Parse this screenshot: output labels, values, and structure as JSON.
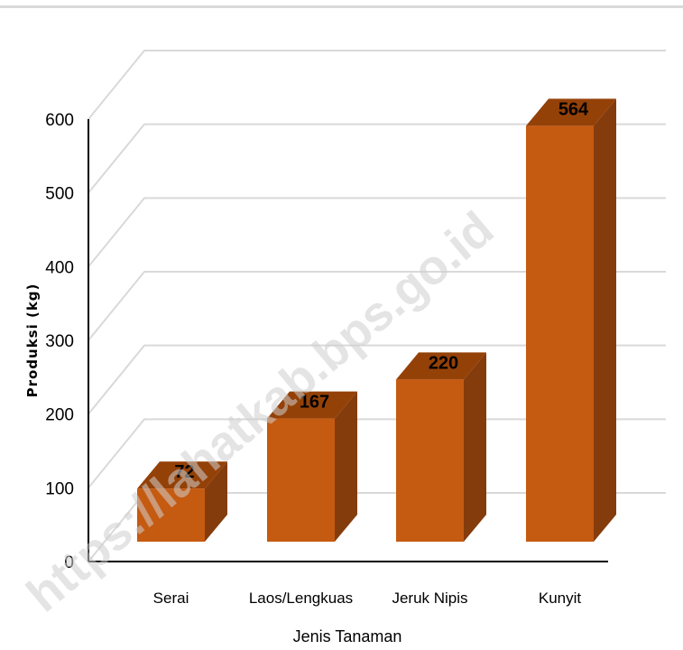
{
  "chart_data": {
    "type": "bar",
    "style": "3d-column",
    "categories": [
      "Serai",
      "Laos/Lengkuas",
      "Jeruk Nipis",
      "Kunyit"
    ],
    "values": [
      72,
      167,
      220,
      564
    ],
    "data_labels": [
      "72",
      "167",
      "220",
      "564"
    ],
    "xlabel": "Jenis Tanaman",
    "ylabel": "Produksi (kg)",
    "ylim": [
      0,
      600
    ],
    "yticks": [
      0,
      100,
      200,
      300,
      400,
      500,
      600
    ],
    "ytick_labels": [
      "0",
      "100",
      "200",
      "300",
      "400",
      "500",
      "600"
    ],
    "grid": true,
    "legend": "none",
    "colors": {
      "bar_front": "#c55a11",
      "bar_top": "#944108",
      "bar_side": "#843c0c",
      "grid": "#d9d9d9"
    }
  },
  "watermark": "https://lahatkab.bps.go.id"
}
